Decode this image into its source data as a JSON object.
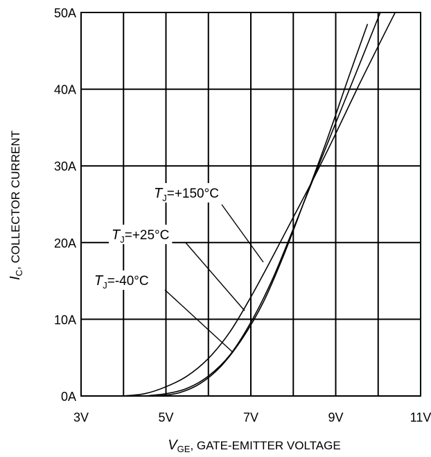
{
  "chart_data": {
    "type": "line",
    "xlabel_symbol": "V",
    "xlabel_sub": "GE",
    "xlabel_text": ", GATE-EMITTER VOLTAGE",
    "ylabel_symbol": "I",
    "ylabel_sub": "C",
    "ylabel_text": ", COLLECTOR CURRENT",
    "xlim": [
      3,
      11
    ],
    "ylim": [
      0,
      50
    ],
    "grid": true,
    "x_ticks": [
      {
        "value": 3,
        "label": "3V"
      },
      {
        "value": 5,
        "label": "5V"
      },
      {
        "value": 7,
        "label": "7V"
      },
      {
        "value": 9,
        "label": "9V"
      },
      {
        "value": 11,
        "label": "11V"
      }
    ],
    "y_ticks": [
      {
        "value": 0,
        "label": "0A"
      },
      {
        "value": 10,
        "label": "10A"
      },
      {
        "value": 20,
        "label": "20A"
      },
      {
        "value": 30,
        "label": "30A"
      },
      {
        "value": 40,
        "label": "40A"
      },
      {
        "value": 50,
        "label": "50A"
      }
    ],
    "series": [
      {
        "name": "TJ=+150°C",
        "label_symbol": "T",
        "label_sub": "J",
        "label_text": "=+150°C",
        "points": [
          [
            4.0,
            0
          ],
          [
            4.5,
            0.3
          ],
          [
            5.0,
            1.2
          ],
          [
            5.5,
            2.6
          ],
          [
            6.0,
            4.9
          ],
          [
            6.5,
            8.3
          ],
          [
            7.0,
            12.9
          ],
          [
            7.5,
            18.0
          ],
          [
            8.0,
            23.3
          ],
          [
            8.5,
            28.6
          ],
          [
            9.0,
            34.2
          ],
          [
            9.5,
            40.0
          ],
          [
            10.0,
            45.6
          ],
          [
            10.4,
            50.0
          ]
        ]
      },
      {
        "name": "TJ=+25°C",
        "label_symbol": "T",
        "label_sub": "J",
        "label_text": "=+25°C",
        "points": [
          [
            4.5,
            0
          ],
          [
            5.0,
            0.3
          ],
          [
            5.5,
            1.0
          ],
          [
            6.0,
            2.6
          ],
          [
            6.5,
            5.3
          ],
          [
            7.0,
            9.6
          ],
          [
            7.5,
            15.1
          ],
          [
            8.0,
            21.8
          ],
          [
            8.5,
            28.7
          ],
          [
            9.0,
            35.6
          ],
          [
            9.5,
            42.4
          ],
          [
            10.05,
            50.0
          ]
        ]
      },
      {
        "name": "TJ=-40°C",
        "label_symbol": "T",
        "label_sub": "J",
        "label_text": "=-40°C",
        "points": [
          [
            4.8,
            0
          ],
          [
            5.3,
            0.4
          ],
          [
            5.8,
            1.6
          ],
          [
            6.3,
            3.9
          ],
          [
            6.8,
            7.5
          ],
          [
            7.3,
            12.3
          ],
          [
            7.8,
            18.7
          ],
          [
            8.3,
            26.0
          ],
          [
            8.8,
            33.5
          ],
          [
            9.3,
            41.5
          ],
          [
            9.75,
            48.5
          ]
        ]
      }
    ]
  }
}
